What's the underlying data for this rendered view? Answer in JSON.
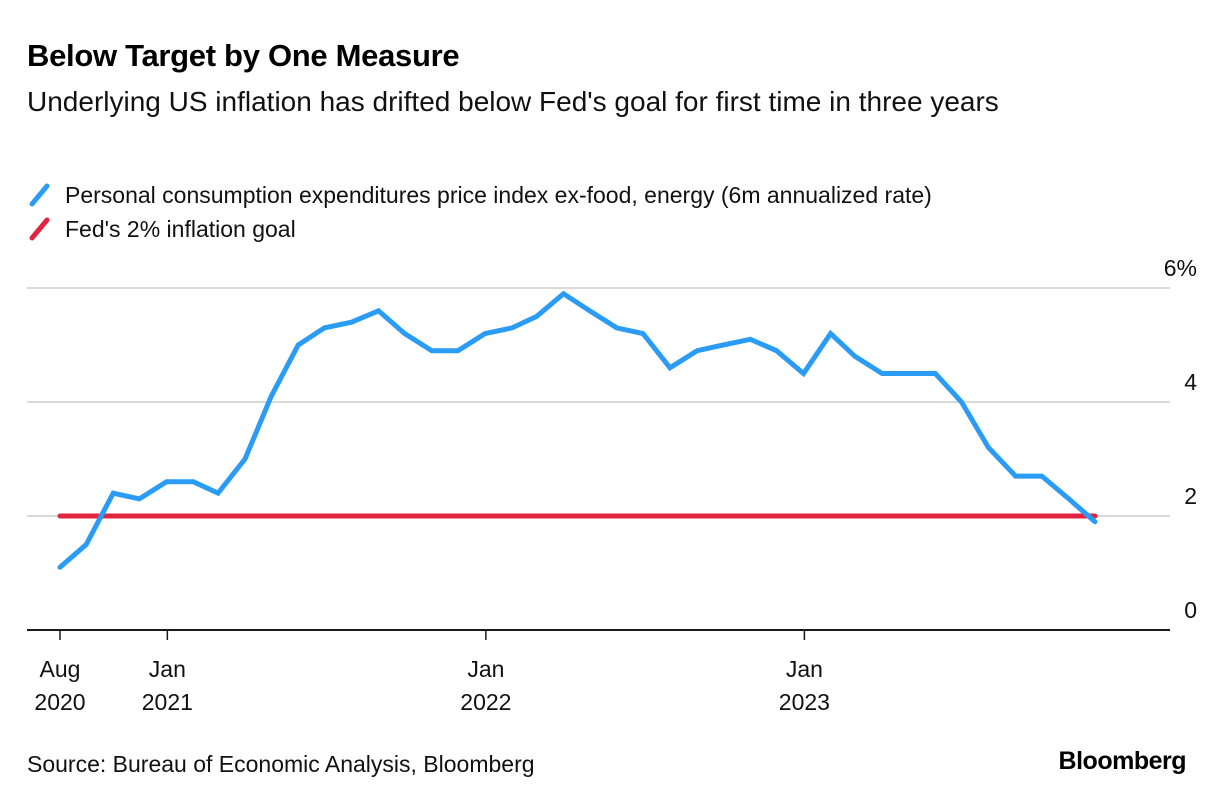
{
  "header": {
    "title": "Below Target by One Measure",
    "subtitle": "Underlying US inflation has drifted below Fed's goal for first time in three years"
  },
  "legend": [
    {
      "label": "Personal consumption expenditures price index ex-food, energy (6m annualized rate)",
      "color": "#2a9cf5"
    },
    {
      "label": "Fed's 2% inflation goal",
      "color": "#e0243f"
    }
  ],
  "footer": {
    "source": "Source: Bureau of Economic Analysis, Bloomberg",
    "brand": "Bloomberg"
  },
  "chart_data": {
    "type": "line",
    "title": "Below Target by One Measure",
    "subtitle": "Underlying US inflation has drifted below Fed's goal for first time in three years",
    "xlabel": "",
    "ylabel": "",
    "ylim": [
      0,
      6
    ],
    "yticks": [
      {
        "value": 0,
        "label": "0"
      },
      {
        "value": 2,
        "label": "2"
      },
      {
        "value": 4,
        "label": "4"
      },
      {
        "value": 6,
        "label": "6%"
      }
    ],
    "y_axis_side": "right",
    "grid": true,
    "legend_position": "top-left",
    "xticks": [
      {
        "date": "2020-08",
        "label": [
          "Aug",
          "2020"
        ]
      },
      {
        "date": "2021-01-01",
        "label": [
          "Jan",
          "2021"
        ]
      },
      {
        "date": "2022-01-01",
        "label": [
          "Jan",
          "2022"
        ]
      },
      {
        "date": "2023-01-01",
        "label": [
          "Jan",
          "2023"
        ]
      }
    ],
    "x": [
      "2020-08",
      "2020-09",
      "2020-10",
      "2020-11",
      "2020-12",
      "2021-01",
      "2021-02",
      "2021-03",
      "2021-04",
      "2021-05",
      "2021-06",
      "2021-07",
      "2021-08",
      "2021-09",
      "2021-10",
      "2021-11",
      "2021-12",
      "2022-01",
      "2022-02",
      "2022-03",
      "2022-04",
      "2022-05",
      "2022-06",
      "2022-07",
      "2022-08",
      "2022-09",
      "2022-10",
      "2022-11",
      "2022-12",
      "2023-01",
      "2023-02",
      "2023-03",
      "2023-04",
      "2023-05",
      "2023-06",
      "2023-07",
      "2023-08",
      "2023-09",
      "2023-10",
      "2023-11"
    ],
    "series": [
      {
        "name": "Personal consumption expenditures price index ex-food, energy (6m annualized rate)",
        "color": "#2a9cf5",
        "values": [
          1.1,
          1.5,
          2.4,
          2.3,
          2.6,
          2.6,
          2.4,
          3.0,
          4.1,
          5.0,
          5.3,
          5.4,
          5.6,
          5.2,
          4.9,
          4.9,
          5.2,
          5.3,
          5.5,
          5.9,
          5.6,
          5.3,
          5.2,
          4.6,
          4.9,
          5.0,
          5.1,
          4.9,
          4.5,
          5.2,
          4.8,
          4.5,
          4.5,
          4.5,
          4.0,
          3.2,
          2.7,
          2.7,
          2.3,
          1.9
        ]
      },
      {
        "name": "Fed's 2% inflation goal",
        "color": "#e0243f",
        "values": [
          2,
          2,
          2,
          2,
          2,
          2,
          2,
          2,
          2,
          2,
          2,
          2,
          2,
          2,
          2,
          2,
          2,
          2,
          2,
          2,
          2,
          2,
          2,
          2,
          2,
          2,
          2,
          2,
          2,
          2,
          2,
          2,
          2,
          2,
          2,
          2,
          2,
          2,
          2,
          2
        ]
      }
    ]
  }
}
